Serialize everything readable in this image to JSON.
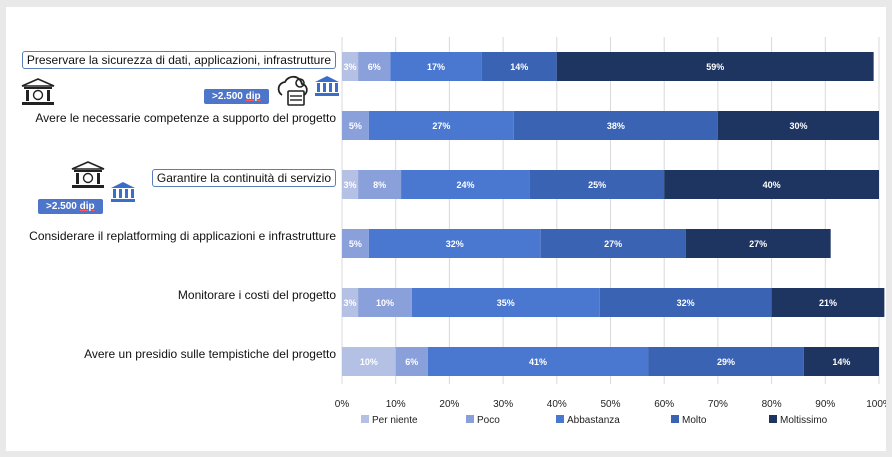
{
  "badges": {
    "dip1": ">2.500 ",
    "dip1_u": "dip",
    "dip2": ">2.500 ",
    "dip2_u": "dip"
  },
  "icons": [
    "bank-building-icon",
    "cloud-gear-server-icon",
    "bank-icon"
  ],
  "chart_data": {
    "type": "bar",
    "orientation": "horizontal",
    "stacked": true,
    "percent": true,
    "categories": [
      "Preservare la sicurezza di dati, applicazioni, infrastrutture",
      "Avere le necessarie competenze a supporto del progetto",
      "Garantire la continuità di servizio",
      "Considerare il replatforming di applicazioni e infrastrutture",
      "Monitorare i costi del progetto",
      "Avere un presidio sulle tempistiche del progetto"
    ],
    "series": [
      {
        "name": "Per niente",
        "color": "#b4c0e4",
        "values": [
          3,
          0,
          3,
          0,
          3,
          10
        ],
        "labels": [
          "3%",
          "",
          "3%",
          "",
          "3%",
          "10%"
        ]
      },
      {
        "name": "Poco",
        "color": "#8aa0db",
        "values": [
          6,
          5,
          8,
          5,
          10,
          6
        ],
        "labels": [
          "6%",
          "5%",
          "8%",
          "5%",
          "10%",
          "6%"
        ]
      },
      {
        "name": "Abbastanza",
        "color": "#4a78d0",
        "values": [
          17,
          27,
          24,
          32,
          35,
          41
        ],
        "labels": [
          "17%",
          "27%",
          "24%",
          "32%",
          "35%",
          "41%"
        ]
      },
      {
        "name": "Molto",
        "color": "#3a63b3",
        "values": [
          14,
          38,
          25,
          27,
          32,
          29
        ],
        "labels": [
          "14%",
          "38%",
          "25%",
          "27%",
          "32%",
          "29%"
        ]
      },
      {
        "name": "Moltissimo",
        "color": "#1e3461",
        "values": [
          59,
          30,
          40,
          27,
          21,
          14
        ],
        "labels": [
          "59%",
          "30%",
          "40%",
          "27%",
          "21%",
          "14%"
        ]
      }
    ],
    "xlim": [
      0,
      100
    ],
    "xticks": [
      "0%",
      "10%",
      "20%",
      "30%",
      "40%",
      "50%",
      "60%",
      "70%",
      "80%",
      "90%",
      "100%"
    ],
    "grid": true,
    "legend": "bottom",
    "xlabel": "",
    "ylabel": ""
  }
}
